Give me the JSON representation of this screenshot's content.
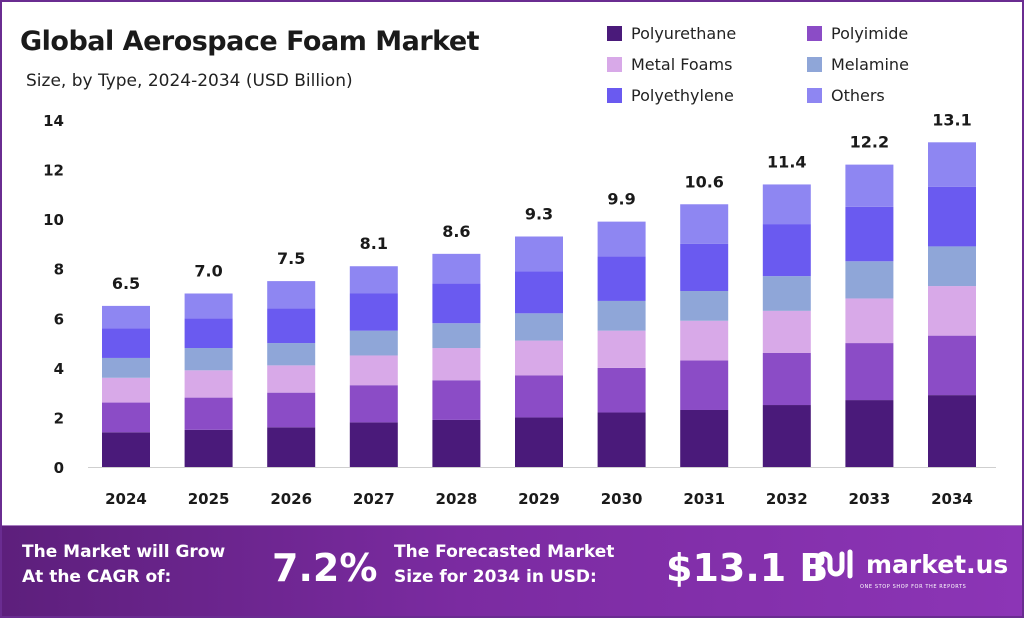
{
  "header": {
    "title": "Global Aerospace Foam Market",
    "subtitle": "Size, by Type, 2024-2034 (USD Billion)"
  },
  "chart_data": {
    "type": "bar",
    "stacked": true,
    "title": "Global Aerospace Foam Market",
    "subtitle": "Size, by Type, 2024-2034 (USD Billion)",
    "xlabel": "",
    "ylabel": "",
    "ylim": [
      0,
      14
    ],
    "yticks": [
      0,
      2,
      4,
      6,
      8,
      10,
      12,
      14
    ],
    "grid": false,
    "legend_position": "top-right",
    "categories": [
      "2024",
      "2025",
      "2026",
      "2027",
      "2028",
      "2029",
      "2030",
      "2031",
      "2032",
      "2033",
      "2034"
    ],
    "totals": [
      6.5,
      7.0,
      7.5,
      8.1,
      8.6,
      9.3,
      9.9,
      10.6,
      11.4,
      12.2,
      13.1
    ],
    "total_labels": [
      "6.5",
      "7.0",
      "7.5",
      "8.1",
      "8.6",
      "9.3",
      "9.9",
      "10.6",
      "11.4",
      "12.2",
      "13.1"
    ],
    "series": [
      {
        "name": "Polyurethane",
        "color": "#4a1a7a",
        "values": [
          1.4,
          1.5,
          1.6,
          1.8,
          1.9,
          2.0,
          2.2,
          2.3,
          2.5,
          2.7,
          2.9
        ]
      },
      {
        "name": "Polyimide",
        "color": "#8b4cc6",
        "values": [
          1.2,
          1.3,
          1.4,
          1.5,
          1.6,
          1.7,
          1.8,
          2.0,
          2.1,
          2.3,
          2.4
        ]
      },
      {
        "name": "Metal Foams",
        "color": "#d8a9e8",
        "values": [
          1.0,
          1.1,
          1.1,
          1.2,
          1.3,
          1.4,
          1.5,
          1.6,
          1.7,
          1.8,
          2.0
        ]
      },
      {
        "name": "Melamine",
        "color": "#8fa6d8",
        "values": [
          0.8,
          0.9,
          0.9,
          1.0,
          1.0,
          1.1,
          1.2,
          1.2,
          1.4,
          1.5,
          1.6
        ]
      },
      {
        "name": "Polyethylene",
        "color": "#6a5af0",
        "values": [
          1.2,
          1.2,
          1.4,
          1.5,
          1.6,
          1.7,
          1.8,
          1.9,
          2.1,
          2.2,
          2.4
        ]
      },
      {
        "name": "Others",
        "color": "#8e86f2",
        "values": [
          0.9,
          1.0,
          1.1,
          1.1,
          1.2,
          1.4,
          1.4,
          1.6,
          1.6,
          1.7,
          1.8
        ]
      }
    ]
  },
  "legend": {
    "items": [
      {
        "label": "Polyurethane",
        "color": "#4a1a7a"
      },
      {
        "label": "Polyimide",
        "color": "#8b4cc6"
      },
      {
        "label": "Metal Foams",
        "color": "#d8a9e8"
      },
      {
        "label": "Melamine",
        "color": "#8fa6d8"
      },
      {
        "label": "Polyethylene",
        "color": "#6a5af0"
      },
      {
        "label": "Others",
        "color": "#8e86f2"
      }
    ]
  },
  "footer": {
    "cagr_label_line1": "The Market will Grow",
    "cagr_label_line2": "At the CAGR of:",
    "cagr_value": "7.2%",
    "size_label_line1": "The Forecasted Market",
    "size_label_line2": "Size for 2034 in USD:",
    "size_value": "$13.1 B",
    "brand_name": "market.us",
    "brand_tagline": "ONE STOP SHOP FOR THE REPORTS"
  }
}
